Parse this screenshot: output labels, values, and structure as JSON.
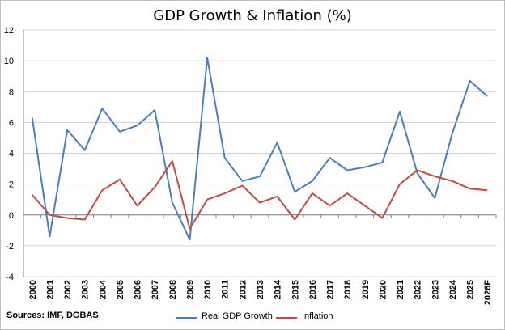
{
  "source_note": "Sources: IMF, DGBAS",
  "colors": {
    "gdp": "#4a7ebb",
    "inflation": "#be4b48",
    "grid": "#d0d0d0",
    "axis": "#868686"
  },
  "chart_data": {
    "type": "line",
    "title": "GDP Growth & Inflation (%)",
    "xlabel": "",
    "ylabel": "",
    "ylim": [
      -4,
      12
    ],
    "yticks": [
      -4,
      -2,
      0,
      2,
      4,
      6,
      8,
      10,
      12
    ],
    "grid": true,
    "legend_position": "bottom",
    "categories": [
      "2000",
      "2001",
      "2002",
      "2003",
      "2004",
      "2005",
      "2006",
      "2007",
      "2008",
      "2009",
      "2010",
      "2011",
      "2012",
      "2013",
      "2014",
      "2015",
      "2016",
      "2017",
      "2018",
      "2019",
      "2020",
      "2021",
      "2022",
      "2023",
      "2024",
      "2025",
      "2026F"
    ],
    "series": [
      {
        "name": "Real GDP Growth",
        "color": "#4a7ebb",
        "values": [
          6.3,
          -1.4,
          5.5,
          4.2,
          6.9,
          5.4,
          5.8,
          6.8,
          0.8,
          -1.6,
          10.2,
          3.7,
          2.2,
          2.5,
          4.7,
          1.5,
          2.2,
          3.7,
          2.9,
          3.1,
          3.4,
          6.7,
          2.7,
          1.1,
          5.3,
          8.7,
          7.7
        ]
      },
      {
        "name": "Inflation",
        "color": "#be4b48",
        "values": [
          1.3,
          0.0,
          -0.2,
          -0.3,
          1.6,
          2.3,
          0.6,
          1.8,
          3.5,
          -0.9,
          1.0,
          1.4,
          1.9,
          0.8,
          1.2,
          -0.3,
          1.4,
          0.6,
          1.4,
          0.6,
          -0.2,
          2.0,
          2.9,
          2.5,
          2.2,
          1.7,
          1.6
        ]
      }
    ]
  }
}
